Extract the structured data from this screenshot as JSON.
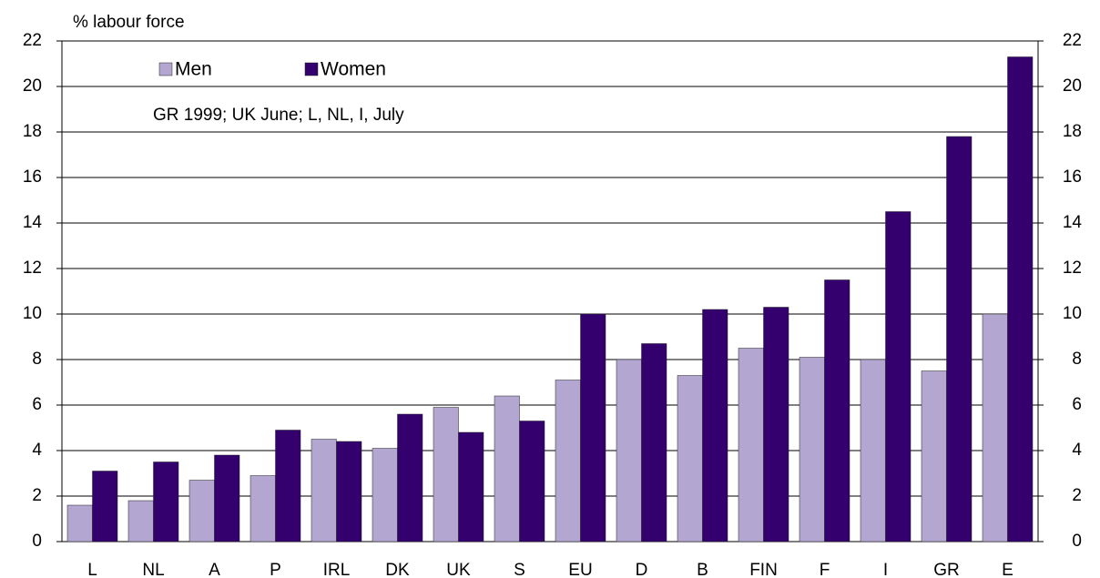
{
  "chart_data": {
    "type": "bar",
    "y_label": "% labour force",
    "annotation": "GR 1999; UK June; L, NL, I, July",
    "categories": [
      "L",
      "NL",
      "A",
      "P",
      "IRL",
      "DK",
      "UK",
      "S",
      "EU",
      "D",
      "B",
      "FIN",
      "F",
      "I",
      "GR",
      "E"
    ],
    "series": [
      {
        "name": "Men",
        "color": "#b3a6d1",
        "values": [
          1.6,
          1.8,
          2.7,
          2.9,
          4.5,
          4.1,
          5.9,
          6.4,
          7.1,
          8.0,
          7.3,
          8.5,
          8.1,
          8.0,
          7.5,
          10.0
        ]
      },
      {
        "name": "Women",
        "color": "#33006e",
        "values": [
          3.1,
          3.5,
          3.8,
          4.9,
          4.4,
          5.6,
          4.8,
          5.3,
          10.0,
          8.7,
          10.2,
          10.3,
          11.5,
          14.5,
          17.8,
          21.3
        ]
      }
    ],
    "ylim": [
      0,
      22
    ],
    "yticks": [
      0,
      2,
      4,
      6,
      8,
      10,
      12,
      14,
      16,
      18,
      20,
      22
    ],
    "y2lim": [
      0,
      22
    ],
    "y2ticks": [
      0,
      2,
      4,
      6,
      8,
      10,
      12,
      14,
      16,
      18,
      20,
      22
    ],
    "grid": true
  }
}
